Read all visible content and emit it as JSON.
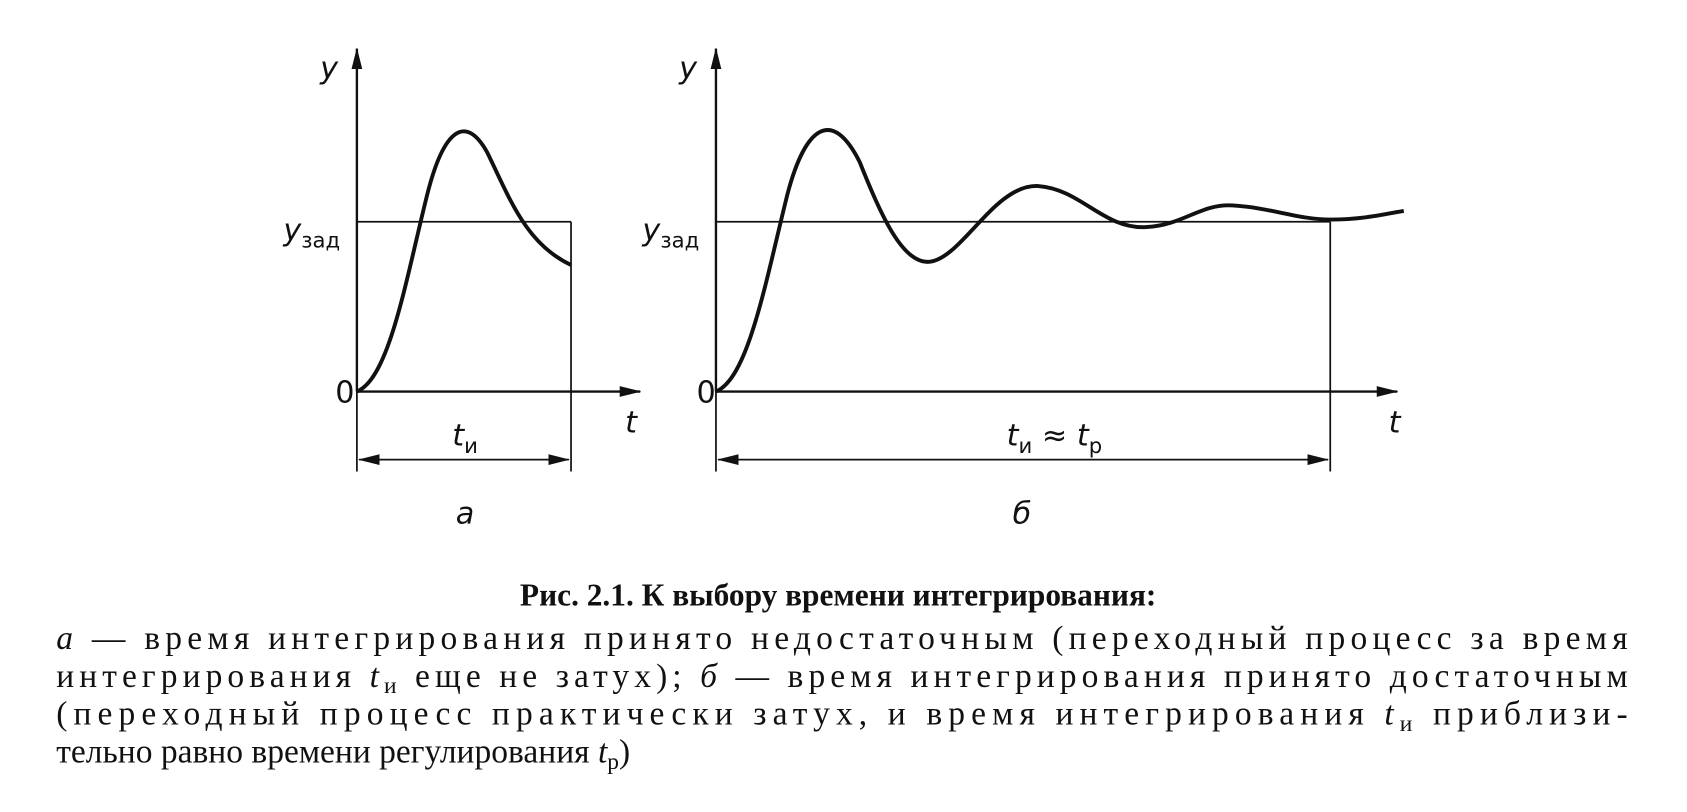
{
  "panels": [
    {
      "y_label": "y",
      "setpoint_label": [
        {
          "italic": "y",
          "sub": "зад"
        }
      ],
      "origin": "0",
      "x_label": "t",
      "interval_label": [
        {
          "italic": "t",
          "sub": "и"
        }
      ],
      "letter": "а"
    },
    {
      "y_label": "y",
      "setpoint_label": [
        {
          "italic": "y",
          "sub": "зад"
        }
      ],
      "origin": "0",
      "x_label": "t",
      "interval_label": [
        {
          "italic": "t",
          "sub": "и"
        },
        {
          "text": " ≈ "
        },
        {
          "italic": "t",
          "sub": "р"
        }
      ],
      "letter": "б"
    }
  ],
  "caption": {
    "title": "Рис. 2.1. К выбору времени интегрирования:",
    "lines": [
      [
        {
          "italic": "а"
        },
        {
          "text": " — время интегрирования принято недостаточным (переходный процесс за время"
        }
      ],
      [
        {
          "text": "интегрирования "
        },
        {
          "italic": "t",
          "sub": "и"
        },
        {
          "text": " еще не затух); "
        },
        {
          "italic": "б"
        },
        {
          "text": " — время интегрирования принято достаточным"
        }
      ],
      [
        {
          "text": "(переходный процесс практически затух, и время интегрирования "
        },
        {
          "italic": "t",
          "sub": "и"
        },
        {
          "text": " приблизи-"
        }
      ],
      [
        {
          "text": "тельно равно времени регулирования "
        },
        {
          "italic": "t",
          "sub": "р"
        },
        {
          "text": ")"
        }
      ]
    ]
  }
}
